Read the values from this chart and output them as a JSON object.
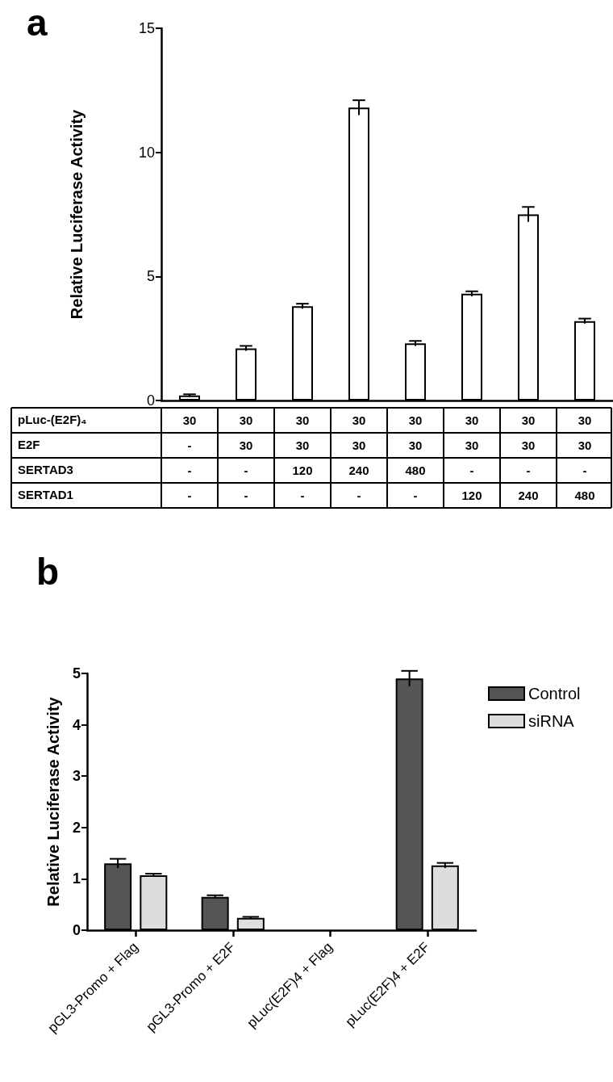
{
  "chart_data": [
    {
      "type": "bar",
      "title": "a",
      "ylabel": "Relative Luciferase Activity",
      "categories": [
        "30\n-\n-\n-",
        "30\n30\n-\n-",
        "30\n30\n120\n-",
        "30\n30\n240\n-",
        "30\n30\n480\n-",
        "30\n30\n-\n120",
        "30\n30\n-\n240",
        "30\n30\n-\n480"
      ],
      "values": [
        0.2,
        2.1,
        3.8,
        11.8,
        2.3,
        4.3,
        7.5,
        3.2
      ],
      "errors": [
        0.05,
        0.1,
        0.1,
        0.3,
        0.1,
        0.1,
        0.3,
        0.1
      ],
      "color": "#ffffff",
      "annotations": [
        "pLuc-(E2F)₄",
        "E2F",
        "SERTAD3",
        "SERTAD1"
      ],
      "ylim": [
        0,
        15
      ],
      "yticks": [
        0,
        5,
        10,
        15
      ]
    },
    {
      "type": "bar",
      "title": "b",
      "ylabel": "Relative Luciferase Activity",
      "categories": [
        "pGL3-Promo + Flag",
        "pGL3-Promo + E2F",
        "pLuc(E2F)4 + Flag",
        "pLuc(E2F)4 + E2F"
      ],
      "series": [
        {
          "name": "Control",
          "color": "#555555",
          "values": [
            1.3,
            0.65,
            null,
            4.9
          ],
          "errors": [
            0.09,
            0.03,
            null,
            0.15
          ]
        },
        {
          "name": "siRNA",
          "color": "#dddddd",
          "values": [
            1.07,
            0.24,
            null,
            1.26
          ],
          "errors": [
            0.03,
            0.02,
            null,
            0.05
          ]
        }
      ],
      "ylim": [
        0,
        5
      ],
      "yticks": [
        0,
        1,
        2,
        3,
        4,
        5
      ],
      "legend": "top right"
    }
  ]
}
